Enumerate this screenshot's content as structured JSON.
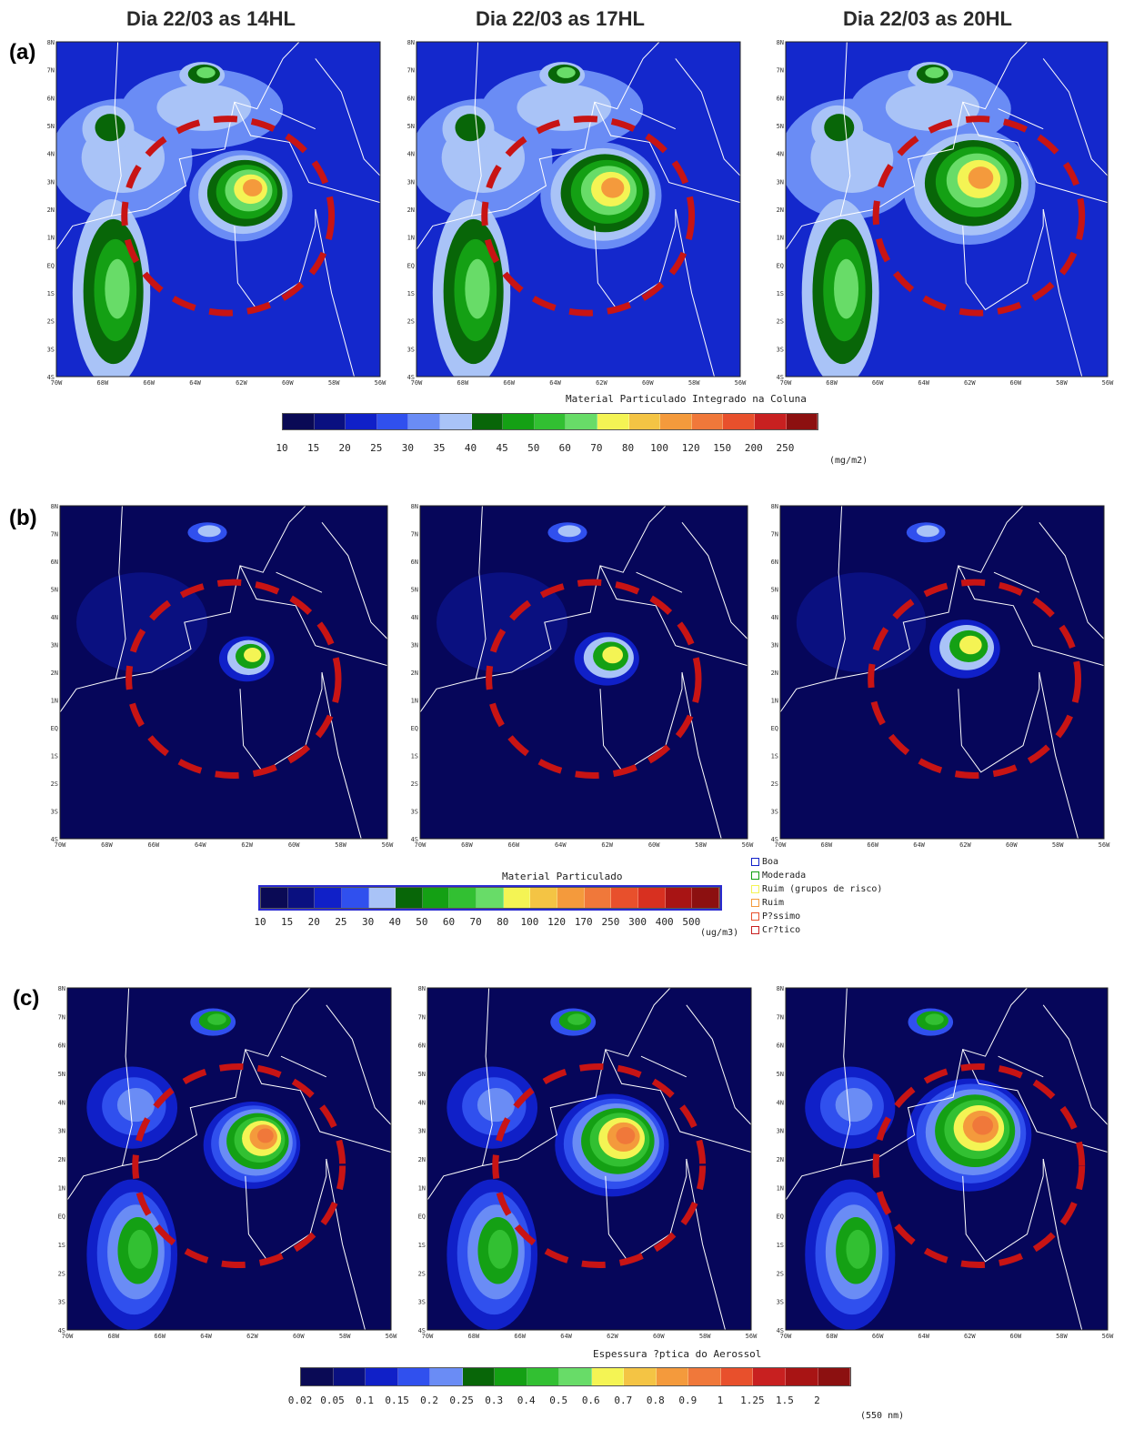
{
  "columns": [
    "Dia 22/03 as 14HL",
    "Dia 22/03 as 17HL",
    "Dia 22/03 as 20HL"
  ],
  "rows": [
    {
      "label": "(a)",
      "colorbar": {
        "title": "Material Particulado Integrado na Coluna",
        "ticks": [
          "10",
          "15",
          "20",
          "25",
          "30",
          "35",
          "40",
          "45",
          "50",
          "60",
          "70",
          "80",
          "100",
          "120",
          "150",
          "200",
          "250"
        ],
        "unit": "(mg/m2)",
        "colors": [
          "#0a0a55",
          "#0a1080",
          "#1020c8",
          "#3050ee",
          "#6a8cf5",
          "#a9c3f7",
          "#086608",
          "#14a014",
          "#32c032",
          "#68dc68",
          "#f4f454",
          "#f4c444",
          "#f49a3c",
          "#f0783a",
          "#e8502c",
          "#c82020",
          "#8c1010"
        ]
      },
      "background": "#1428cc"
    },
    {
      "label": "(b)",
      "colorbar": {
        "title": "Material Particulado",
        "ticks": [
          "10",
          "15",
          "20",
          "25",
          "30",
          "40",
          "50",
          "60",
          "70",
          "80",
          "100",
          "120",
          "170",
          "250",
          "300",
          "400",
          "500"
        ],
        "unit": "(ug/m3)",
        "colors": [
          "#0a0a55",
          "#0a1080",
          "#1020c8",
          "#3050ee",
          "#a9c3f7",
          "#086608",
          "#14a014",
          "#32c032",
          "#68dc68",
          "#f4f454",
          "#f4c444",
          "#f49a3c",
          "#f0783a",
          "#e8502c",
          "#d83020",
          "#a81414",
          "#8c1010"
        ]
      },
      "background": "#06065a",
      "legend": [
        {
          "label": "Boa",
          "color": "#1020c8"
        },
        {
          "label": "Moderada",
          "color": "#14a014"
        },
        {
          "label": "Ruim (grupos de risco)",
          "color": "#f4f454"
        },
        {
          "label": "Ruim",
          "color": "#f49a3c"
        },
        {
          "label": "P?ssimo",
          "color": "#e8502c"
        },
        {
          "label": "Cr?tico",
          "color": "#c82020"
        }
      ]
    },
    {
      "label": "(c)",
      "colorbar": {
        "title": "Espessura ?ptica do Aerossol",
        "ticks": [
          "0.02",
          "0.05",
          "0.1",
          "0.15",
          "0.2",
          "0.25",
          "0.3",
          "0.4",
          "0.5",
          "0.6",
          "0.7",
          "0.8",
          "0.9",
          "1",
          "1.25",
          "1.5",
          "2"
        ],
        "unit": "(550 nm)",
        "colors": [
          "#0a0a55",
          "#0a1080",
          "#1020c8",
          "#3050ee",
          "#6a8cf5",
          "#086608",
          "#14a014",
          "#32c032",
          "#68dc68",
          "#f4f454",
          "#f4c444",
          "#f49a3c",
          "#f0783a",
          "#e8502c",
          "#c82020",
          "#a81414",
          "#8c1010"
        ]
      },
      "background": "#06065a"
    }
  ],
  "axes": {
    "lat_labels": [
      "8N",
      "7N",
      "6N",
      "5N",
      "4N",
      "3N",
      "2N",
      "1N",
      "EQ",
      "1S",
      "2S",
      "3S",
      "4S"
    ],
    "lon_labels": [
      "70W",
      "68W",
      "66W",
      "64W",
      "62W",
      "60W",
      "58W",
      "56W"
    ]
  }
}
